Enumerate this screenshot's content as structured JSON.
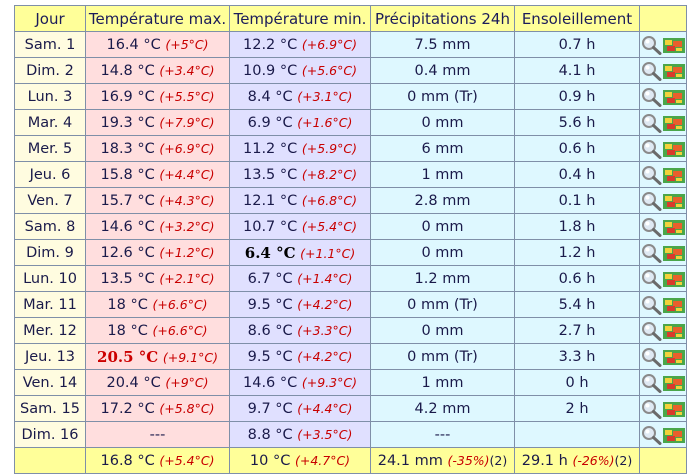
{
  "headers": {
    "day": "Jour",
    "tmax": "Température max.",
    "tmin": "Température min.",
    "prec": "Précipitations 24h",
    "sun": "Ensoleillement"
  },
  "rows": [
    {
      "day": "Sam. 1",
      "tmax": "16.4 °C",
      "tmax_ano": "(+5°C)",
      "tmin": "12.2 °C",
      "tmin_ano": "(+6.9°C)",
      "prec": "7.5 mm",
      "sun": "0.7 h"
    },
    {
      "day": "Dim. 2",
      "tmax": "14.8 °C",
      "tmax_ano": "(+3.4°C)",
      "tmin": "10.9 °C",
      "tmin_ano": "(+5.6°C)",
      "prec": "0.4 mm",
      "sun": "4.1 h"
    },
    {
      "day": "Lun. 3",
      "tmax": "16.9 °C",
      "tmax_ano": "(+5.5°C)",
      "tmin": "8.4 °C",
      "tmin_ano": "(+3.1°C)",
      "prec": "0 mm (Tr)",
      "sun": "0.9 h"
    },
    {
      "day": "Mar. 4",
      "tmax": "19.3 °C",
      "tmax_ano": "(+7.9°C)",
      "tmin": "6.9 °C",
      "tmin_ano": "(+1.6°C)",
      "prec": "0 mm",
      "sun": "5.6 h"
    },
    {
      "day": "Mer. 5",
      "tmax": "18.3 °C",
      "tmax_ano": "(+6.9°C)",
      "tmin": "11.2 °C",
      "tmin_ano": "(+5.9°C)",
      "prec": "6 mm",
      "sun": "0.6 h"
    },
    {
      "day": "Jeu. 6",
      "tmax": "15.8 °C",
      "tmax_ano": "(+4.4°C)",
      "tmin": "13.5 °C",
      "tmin_ano": "(+8.2°C)",
      "prec": "1 mm",
      "sun": "0.4 h"
    },
    {
      "day": "Ven. 7",
      "tmax": "15.7 °C",
      "tmax_ano": "(+4.3°C)",
      "tmin": "12.1 °C",
      "tmin_ano": "(+6.8°C)",
      "prec": "2.8 mm",
      "sun": "0.1 h"
    },
    {
      "day": "Sam. 8",
      "tmax": "14.6 °C",
      "tmax_ano": "(+3.2°C)",
      "tmin": "10.7 °C",
      "tmin_ano": "(+5.4°C)",
      "prec": "0 mm",
      "sun": "1.8 h"
    },
    {
      "day": "Dim. 9",
      "tmax": "12.6 °C",
      "tmax_ano": "(+1.2°C)",
      "tmin": "6.4 °C",
      "tmin_ano": "(+1.1°C)",
      "tmin_record": true,
      "prec": "0 mm",
      "sun": "1.2 h"
    },
    {
      "day": "Lun. 10",
      "tmax": "13.5 °C",
      "tmax_ano": "(+2.1°C)",
      "tmin": "6.7 °C",
      "tmin_ano": "(+1.4°C)",
      "prec": "1.2 mm",
      "sun": "0.6 h"
    },
    {
      "day": "Mar. 11",
      "tmax": "18 °C",
      "tmax_ano": "(+6.6°C)",
      "tmin": "9.5 °C",
      "tmin_ano": "(+4.2°C)",
      "prec": "0 mm (Tr)",
      "sun": "5.4 h"
    },
    {
      "day": "Mer. 12",
      "tmax": "18 °C",
      "tmax_ano": "(+6.6°C)",
      "tmin": "8.6 °C",
      "tmin_ano": "(+3.3°C)",
      "prec": "0 mm",
      "sun": "2.7 h"
    },
    {
      "day": "Jeu. 13",
      "tmax": "20.5 °C",
      "tmax_ano": "(+9.1°C)",
      "tmax_record": true,
      "tmin": "9.5 °C",
      "tmin_ano": "(+4.2°C)",
      "prec": "0 mm (Tr)",
      "sun": "3.3 h"
    },
    {
      "day": "Ven. 14",
      "tmax": "20.4 °C",
      "tmax_ano": "(+9°C)",
      "tmin": "14.6 °C",
      "tmin_ano": "(+9.3°C)",
      "prec": "1 mm",
      "sun": "0 h"
    },
    {
      "day": "Sam. 15",
      "tmax": "17.2 °C",
      "tmax_ano": "(+5.8°C)",
      "tmin": "9.7 °C",
      "tmin_ano": "(+4.4°C)",
      "prec": "4.2 mm",
      "sun": "2 h"
    },
    {
      "day": "Dim. 16",
      "tmax": "---",
      "tmax_ano": "",
      "tmin": "8.8 °C",
      "tmin_ano": "(+3.5°C)",
      "prec": "---",
      "sun": ""
    }
  ],
  "totals": {
    "tmax": "16.8 °C",
    "tmax_ano": "(+5.4°C)",
    "tmin": "10 °C",
    "tmin_ano": "(+4.7°C)",
    "prec": "24.1 mm",
    "prec_ano": "(-35%)",
    "prec_sup": "(2)",
    "sun": "29.1 h",
    "sun_ano": "(-26%)",
    "sun_sup": "(2)"
  },
  "icons": {
    "zoom": "magnifier-icon",
    "map": "map-icon"
  },
  "colors": {
    "header_bg": "#ffff99",
    "tmax_bg": "#ffdede",
    "tmin_bg": "#e0e0ff",
    "other_bg": "#def8ff",
    "day_bg": "#fffce0",
    "anomaly": "#c80000"
  }
}
